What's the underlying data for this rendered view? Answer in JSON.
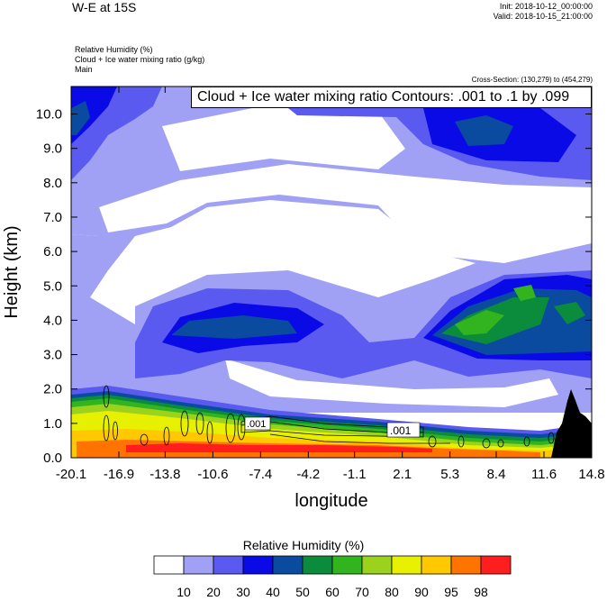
{
  "header": {
    "title": "W-E at 15S",
    "init": "Init: 2018-10-12_00:00:00",
    "valid": "Valid: 2018-10-15_21:00:00",
    "field_lines": [
      "Relative Humidity   (%)",
      "Cloud + Ice water mixing ratio   (g/kg)",
      "Main"
    ],
    "cross_section": "Cross-Section: (130,279) to (454,279)"
  },
  "contour_label": "Cloud + Ice water mixing ratio Contours: .001 to .1 by .099",
  "chart_data": {
    "type": "heatmap",
    "xlabel": "longitude",
    "ylabel": "Height (km)",
    "x_ticks": [
      "-20.1",
      "-16.9",
      "-13.8",
      "-10.6",
      "-7.4",
      "-4.2",
      "-1.1",
      "2.1",
      "5.3",
      "8.4",
      "11.6",
      "14.8"
    ],
    "y_ticks": [
      "0.0",
      "1.0",
      "2.0",
      "3.0",
      "4.0",
      "5.0",
      "6.0",
      "7.0",
      "8.0",
      "9.0",
      "10.0"
    ],
    "xlim": [
      -20.1,
      14.8
    ],
    "ylim": [
      0,
      10.8
    ],
    "contour_inline_labels": [
      ".001",
      ".001"
    ],
    "colorbar": {
      "title": "Relative Humidity  (%)",
      "levels": [
        "10",
        "20",
        "30",
        "40",
        "50",
        "60",
        "70",
        "80",
        "90",
        "95",
        "98"
      ],
      "colors": [
        "#ffffff",
        "#a0a0f5",
        "#5a5af0",
        "#0a0ae6",
        "#0a4ba0",
        "#0a8c3c",
        "#32b41e",
        "#9bd21e",
        "#e6f000",
        "#ffc800",
        "#ff7300",
        "#ff1e1e"
      ]
    }
  }
}
